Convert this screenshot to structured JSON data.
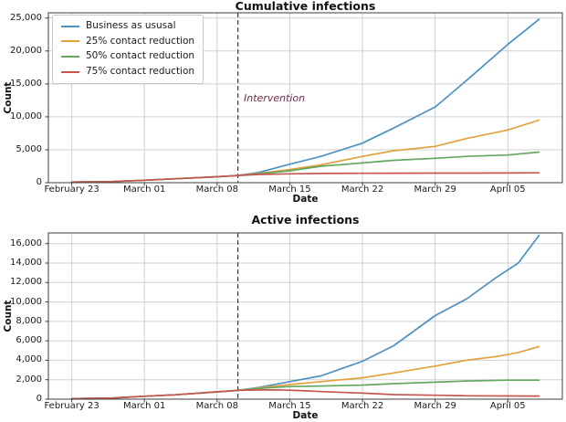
{
  "chart_data": [
    {
      "type": "line",
      "title": "Cumulative infections",
      "xlabel": "Date",
      "ylabel": "Count",
      "x_axis": {
        "xlim_days": [
          -2.25,
          47.25
        ],
        "tick_days": [
          0,
          7,
          14,
          21,
          28,
          35,
          42
        ],
        "tick_labels": [
          "February 23",
          "March 01",
          "March 08",
          "March 15",
          "March 22",
          "March 29",
          "April 05"
        ]
      },
      "y_axis": {
        "ylim": [
          0,
          25800
        ],
        "ticks": [
          0,
          5000,
          10000,
          15000,
          20000,
          25000
        ],
        "tick_labels": [
          "0",
          "5,000",
          "10,000",
          "15,000",
          "20,000",
          "25,000"
        ]
      },
      "grid": true,
      "grid_color": "#cfcfcf",
      "legend": {
        "show": true,
        "position": "upper left"
      },
      "intervention": {
        "day": 16,
        "label": "Intervention",
        "line_color": "#3a3a3a",
        "label_color": "#6e2d4b"
      },
      "series": [
        {
          "name": "Business as ususal",
          "color": "#4c92c3",
          "points": [
            [
              0,
              100
            ],
            [
              4,
              180
            ],
            [
              7,
              380
            ],
            [
              10,
              600
            ],
            [
              14,
              900
            ],
            [
              16,
              1100
            ],
            [
              18,
              1550
            ],
            [
              21,
              2800
            ],
            [
              24,
              4000
            ],
            [
              28,
              6000
            ],
            [
              31,
              8300
            ],
            [
              35,
              11500
            ],
            [
              38,
              15500
            ],
            [
              42,
              21000
            ],
            [
              45,
              24800
            ]
          ]
        },
        {
          "name": "25% contact reduction",
          "color": "#e3a13c",
          "points": [
            [
              0,
              100
            ],
            [
              4,
              180
            ],
            [
              7,
              380
            ],
            [
              10,
              600
            ],
            [
              14,
              900
            ],
            [
              16,
              1100
            ],
            [
              18,
              1400
            ],
            [
              21,
              2000
            ],
            [
              24,
              2700
            ],
            [
              28,
              4000
            ],
            [
              31,
              4850
            ],
            [
              35,
              5500
            ],
            [
              38,
              6700
            ],
            [
              42,
              8000
            ],
            [
              45,
              9500
            ]
          ]
        },
        {
          "name": "50% contact reduction",
          "color": "#64a860",
          "points": [
            [
              0,
              100
            ],
            [
              4,
              180
            ],
            [
              7,
              380
            ],
            [
              10,
              600
            ],
            [
              14,
              900
            ],
            [
              16,
              1100
            ],
            [
              18,
              1350
            ],
            [
              21,
              1800
            ],
            [
              24,
              2500
            ],
            [
              28,
              3000
            ],
            [
              31,
              3400
            ],
            [
              35,
              3700
            ],
            [
              38,
              4000
            ],
            [
              42,
              4200
            ],
            [
              45,
              4650
            ]
          ]
        },
        {
          "name": "75% contact reduction",
          "color": "#c4574f",
          "points": [
            [
              0,
              100
            ],
            [
              4,
              180
            ],
            [
              7,
              380
            ],
            [
              10,
              600
            ],
            [
              14,
              900
            ],
            [
              16,
              1100
            ],
            [
              18,
              1250
            ],
            [
              21,
              1350
            ],
            [
              24,
              1400
            ],
            [
              28,
              1430
            ],
            [
              31,
              1440
            ],
            [
              35,
              1450
            ],
            [
              38,
              1460
            ],
            [
              42,
              1470
            ],
            [
              45,
              1500
            ]
          ]
        }
      ]
    },
    {
      "type": "line",
      "title": "Active infections",
      "xlabel": "Date",
      "ylabel": "Count",
      "x_axis": {
        "xlim_days": [
          -2.25,
          47.25
        ],
        "tick_days": [
          0,
          7,
          14,
          21,
          28,
          35,
          42
        ],
        "tick_labels": [
          "February 23",
          "March 01",
          "March 08",
          "March 15",
          "March 22",
          "March 29",
          "April 05"
        ]
      },
      "y_axis": {
        "ylim": [
          0,
          17100
        ],
        "ticks": [
          0,
          2000,
          4000,
          6000,
          8000,
          10000,
          12000,
          14000,
          16000
        ],
        "tick_labels": [
          "0",
          "2,000",
          "4,000",
          "6,000",
          "8,000",
          "10,000",
          "12,000",
          "14,000",
          "16,000"
        ]
      },
      "grid": true,
      "grid_color": "#cfcfcf",
      "legend": {
        "show": false
      },
      "intervention": {
        "day": 16,
        "label": "",
        "line_color": "#3a3a3a",
        "label_color": "#6e2d4b"
      },
      "series": [
        {
          "name": "Business as ususal",
          "color": "#4c92c3",
          "points": [
            [
              0,
              50
            ],
            [
              4,
              120
            ],
            [
              7,
              300
            ],
            [
              10,
              450
            ],
            [
              14,
              750
            ],
            [
              16,
              900
            ],
            [
              18,
              1200
            ],
            [
              21,
              1800
            ],
            [
              24,
              2400
            ],
            [
              28,
              3900
            ],
            [
              31,
              5500
            ],
            [
              35,
              8600
            ],
            [
              38,
              10300
            ],
            [
              41,
              12600
            ],
            [
              43,
              14000
            ],
            [
              45,
              16850
            ]
          ]
        },
        {
          "name": "25% contact reduction",
          "color": "#e3a13c",
          "points": [
            [
              0,
              50
            ],
            [
              4,
              120
            ],
            [
              7,
              300
            ],
            [
              10,
              450
            ],
            [
              14,
              750
            ],
            [
              16,
              900
            ],
            [
              18,
              1150
            ],
            [
              21,
              1500
            ],
            [
              24,
              1800
            ],
            [
              28,
              2200
            ],
            [
              31,
              2700
            ],
            [
              35,
              3400
            ],
            [
              38,
              4000
            ],
            [
              41,
              4400
            ],
            [
              43,
              4800
            ],
            [
              45,
              5400
            ]
          ]
        },
        {
          "name": "50% contact reduction",
          "color": "#64a860",
          "points": [
            [
              0,
              50
            ],
            [
              4,
              120
            ],
            [
              7,
              300
            ],
            [
              10,
              450
            ],
            [
              14,
              750
            ],
            [
              16,
              900
            ],
            [
              18,
              1100
            ],
            [
              21,
              1300
            ],
            [
              24,
              1350
            ],
            [
              28,
              1450
            ],
            [
              31,
              1600
            ],
            [
              35,
              1750
            ],
            [
              38,
              1870
            ],
            [
              42,
              1950
            ],
            [
              45,
              1950
            ]
          ]
        },
        {
          "name": "75% contact reduction",
          "color": "#c4574f",
          "points": [
            [
              0,
              50
            ],
            [
              4,
              120
            ],
            [
              7,
              300
            ],
            [
              10,
              450
            ],
            [
              14,
              750
            ],
            [
              16,
              900
            ],
            [
              18,
              950
            ],
            [
              20,
              960
            ],
            [
              22,
              880
            ],
            [
              24,
              780
            ],
            [
              28,
              620
            ],
            [
              31,
              470
            ],
            [
              35,
              400
            ],
            [
              38,
              350
            ],
            [
              42,
              330
            ],
            [
              45,
              320
            ]
          ]
        }
      ]
    }
  ]
}
